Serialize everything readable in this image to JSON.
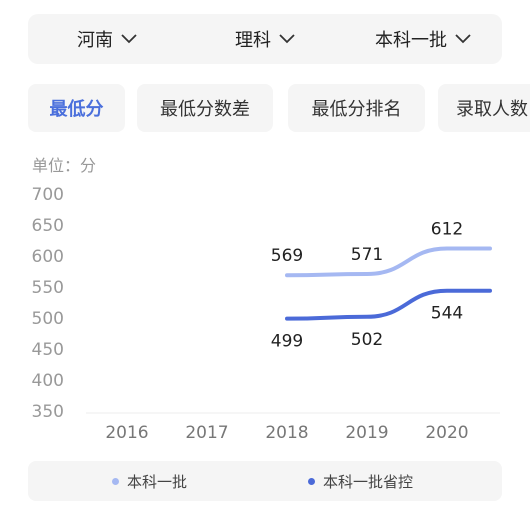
{
  "filters": [
    {
      "label": "河南"
    },
    {
      "label": "理科"
    },
    {
      "label": "本科一批"
    }
  ],
  "tabs": [
    {
      "label": "最低分",
      "active": true
    },
    {
      "label": "最低分数差",
      "active": false
    },
    {
      "label": "最低分排名",
      "active": false
    },
    {
      "label": "录取人数",
      "active": false
    }
  ],
  "unit_label": "单位：分",
  "colors": {
    "accent": "#4a6fdc",
    "series_1": "#a5b8f2",
    "series_2": "#4b6ad8"
  },
  "chart_data": {
    "type": "line",
    "categories": [
      "2016",
      "2017",
      "2018",
      "2019",
      "2020"
    ],
    "ylim": [
      350,
      700
    ],
    "yticks": [
      350,
      400,
      450,
      500,
      550,
      600,
      650,
      700
    ],
    "series": [
      {
        "name": "本科一批",
        "values": [
          null,
          null,
          569,
          571,
          612
        ],
        "color": "#a5b8f2",
        "label_position": "above"
      },
      {
        "name": "本科一批省控",
        "values": [
          null,
          null,
          499,
          502,
          544
        ],
        "color": "#4b6ad8",
        "label_position": "below"
      }
    ],
    "legend_position": "bottom",
    "grid": false
  }
}
